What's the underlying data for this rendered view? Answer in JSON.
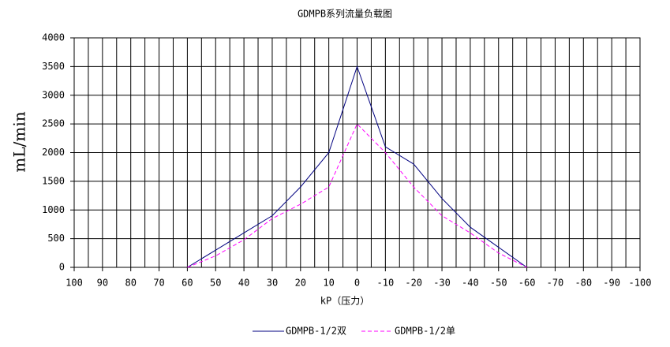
{
  "chart_data": {
    "type": "line",
    "title": "GDMPB系列流量负载图",
    "xlabel": "kP（压力）",
    "ylabel": "mL/min",
    "x": [
      60,
      50,
      40,
      30,
      20,
      10,
      0,
      -10,
      -20,
      -30,
      -40,
      -50,
      -60
    ],
    "series": [
      {
        "name": "GDMPB-1/2双",
        "color": "#000080",
        "dash": false,
        "values": [
          0,
          300,
          600,
          900,
          1400,
          2000,
          3500,
          2100,
          1800,
          1200,
          700,
          350,
          0
        ]
      },
      {
        "name": "GDMPB-1/2单",
        "color": "#ff00ff",
        "dash": true,
        "values": [
          0,
          200,
          480,
          850,
          1100,
          1400,
          2500,
          2000,
          1400,
          900,
          600,
          250,
          0
        ]
      }
    ],
    "xlim": [
      100,
      -100
    ],
    "xticks": [
      100,
      90,
      80,
      70,
      60,
      50,
      40,
      30,
      20,
      10,
      0,
      -10,
      -20,
      -30,
      -40,
      -50,
      -60,
      -70,
      -80,
      -90,
      -100
    ],
    "xminor_grid": [
      95,
      85,
      75,
      65,
      55,
      45,
      35,
      25,
      15,
      5,
      -5,
      -15,
      -25,
      -35,
      -45,
      -55,
      -65,
      -75,
      -85,
      -95
    ],
    "ylim": [
      0,
      4000
    ],
    "yticks": [
      0,
      500,
      1000,
      1500,
      2000,
      2500,
      3000,
      3500,
      4000
    ],
    "grid": true,
    "legend": "bottom"
  }
}
